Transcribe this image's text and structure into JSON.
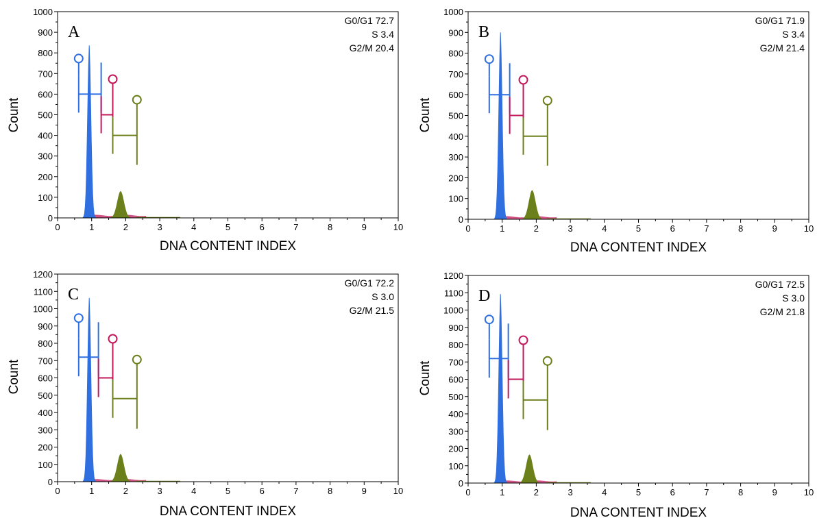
{
  "colors": {
    "g0g1": "#2f6fe0",
    "s": "#c2185b",
    "g2m": "#6b7f1a",
    "background": "#ffffff",
    "axis": "#000000"
  },
  "chart_data": [
    {
      "type": "histogram",
      "panel": "A",
      "xlabel": "DNA CONTENT INDEX",
      "ylabel": "Count",
      "xlim": [
        0,
        10
      ],
      "ylim": [
        0,
        1000
      ],
      "xticks": [
        "0",
        "1",
        "2",
        "3",
        "4",
        "5",
        "6",
        "7",
        "8",
        "9",
        "10"
      ],
      "yticks": [
        "0",
        "100",
        "200",
        "300",
        "400",
        "500",
        "600",
        "700",
        "800",
        "900",
        "1000"
      ],
      "g1_peak": {
        "x": 0.93,
        "height": 850
      },
      "g2_peak": {
        "x": 1.85,
        "height": 130
      },
      "stats": [
        "G0/G1 72.7",
        "S 3.4",
        "G2/M 20.4"
      ],
      "gates": [
        {
          "phase": "G0/G1",
          "x0": 0.62,
          "x1": 1.28,
          "y": 600
        },
        {
          "phase": "S",
          "x0": 1.28,
          "x1": 1.62,
          "y": 500
        },
        {
          "phase": "G2/M",
          "x0": 1.62,
          "x1": 2.33,
          "y": 400
        }
      ]
    },
    {
      "type": "histogram",
      "panel": "B",
      "xlabel": "DNA CONTENT INDEX",
      "ylabel": "Count",
      "xlim": [
        0,
        10
      ],
      "ylim": [
        0,
        1000
      ],
      "xticks": [
        "0",
        "1",
        "2",
        "3",
        "4",
        "5",
        "6",
        "7",
        "8",
        "9",
        "10"
      ],
      "yticks": [
        "0",
        "100",
        "200",
        "300",
        "400",
        "500",
        "600",
        "700",
        "800",
        "900",
        "1000"
      ],
      "g1_peak": {
        "x": 0.95,
        "height": 915
      },
      "g2_peak": {
        "x": 1.88,
        "height": 140
      },
      "stats": [
        "G0/G1 71.9",
        "S 3.4",
        "G2/M 21.4"
      ],
      "gates": [
        {
          "phase": "G0/G1",
          "x0": 0.62,
          "x1": 1.22,
          "y": 600
        },
        {
          "phase": "S",
          "x0": 1.22,
          "x1": 1.62,
          "y": 500
        },
        {
          "phase": "G2/M",
          "x0": 1.62,
          "x1": 2.33,
          "y": 400
        }
      ]
    },
    {
      "type": "histogram",
      "panel": "C",
      "xlabel": "DNA CONTENT INDEX",
      "ylabel": "Count",
      "xlim": [
        0,
        10
      ],
      "ylim": [
        0,
        1200
      ],
      "xticks": [
        "0",
        "1",
        "2",
        "3",
        "4",
        "5",
        "6",
        "7",
        "8",
        "9",
        "10"
      ],
      "yticks": [
        "0",
        "100",
        "200",
        "300",
        "400",
        "500",
        "600",
        "700",
        "800",
        "900",
        "1000",
        "1100",
        "1200"
      ],
      "g1_peak": {
        "x": 0.93,
        "height": 1080
      },
      "g2_peak": {
        "x": 1.85,
        "height": 160
      },
      "stats": [
        "G0/G1 72.2",
        "S 3.0",
        "G2/M 21.5"
      ],
      "gates": [
        {
          "phase": "G0/G1",
          "x0": 0.62,
          "x1": 1.2,
          "y": 720
        },
        {
          "phase": "S",
          "x0": 1.2,
          "x1": 1.62,
          "y": 600
        },
        {
          "phase": "G2/M",
          "x0": 1.62,
          "x1": 2.33,
          "y": 480
        }
      ]
    },
    {
      "type": "histogram",
      "panel": "D",
      "xlabel": "DNA CONTENT INDEX",
      "ylabel": "Count",
      "xlim": [
        0,
        10
      ],
      "ylim": [
        0,
        1200
      ],
      "xticks": [
        "0",
        "1",
        "2",
        "3",
        "4",
        "5",
        "6",
        "7",
        "8",
        "9",
        "10"
      ],
      "yticks": [
        "0",
        "100",
        "200",
        "300",
        "400",
        "500",
        "600",
        "700",
        "800",
        "900",
        "1000",
        "1100",
        "1200"
      ],
      "g1_peak": {
        "x": 0.95,
        "height": 1110
      },
      "g2_peak": {
        "x": 1.8,
        "height": 165
      },
      "stats": [
        "G0/G1 72.5",
        "S 3.0",
        "G2/M 21.8"
      ],
      "gates": [
        {
          "phase": "G0/G1",
          "x0": 0.62,
          "x1": 1.18,
          "y": 720
        },
        {
          "phase": "S",
          "x0": 1.18,
          "x1": 1.62,
          "y": 600
        },
        {
          "phase": "G2/M",
          "x0": 1.62,
          "x1": 2.33,
          "y": 480
        }
      ]
    }
  ]
}
